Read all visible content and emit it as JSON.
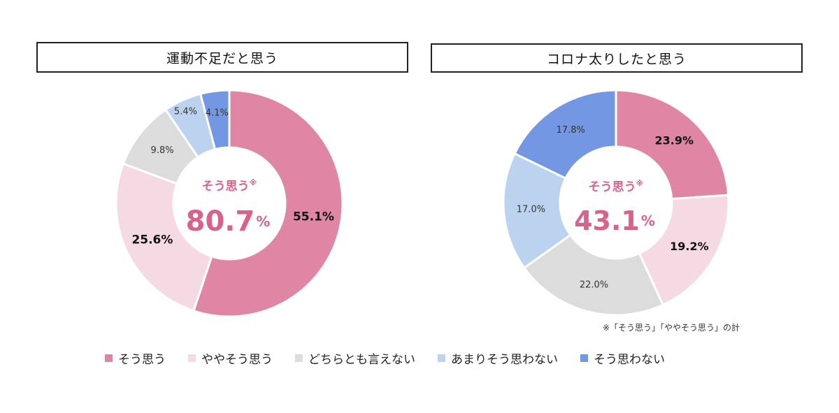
{
  "colors": {
    "so_omou": "#df86a5",
    "yaya_so_omou": "#f5d9e3",
    "dochira_tomo": "#dcdcdc",
    "amari": "#bcd3f0",
    "so_omowanai": "#7397e3",
    "center_text": "#d9628a"
  },
  "legend": [
    {
      "label": "そう思う",
      "color": "#df86a5"
    },
    {
      "label": "ややそう思う",
      "color": "#f5d9e3"
    },
    {
      "label": "どちらとも言えない",
      "color": "#dcdcdc"
    },
    {
      "label": "あまりそう思わない",
      "color": "#bcd3f0"
    },
    {
      "label": "そう思わない",
      "color": "#7397e3"
    }
  ],
  "footnote": "※「そう思う」「ややそう思う」の計",
  "chart_data": [
    {
      "type": "pie",
      "variant": "donut",
      "title": "運動不足だと思う",
      "categories": [
        "そう思う",
        "ややそう思う",
        "どちらとも言えない",
        "あまりそう思わない",
        "そう思わない"
      ],
      "values": [
        55.1,
        25.6,
        9.8,
        5.4,
        4.1
      ],
      "labels": [
        "55.1%",
        "25.6%",
        "9.8%",
        "5.4%",
        "4.1%"
      ],
      "center_label": "そう思う",
      "center_mark": "※",
      "center_value": "80.7",
      "center_unit": "%"
    },
    {
      "type": "pie",
      "variant": "donut",
      "title": "コロナ太りしたと思う",
      "categories": [
        "そう思う",
        "ややそう思う",
        "どちらとも言えない",
        "あまりそう思わない",
        "そう思わない"
      ],
      "values": [
        23.9,
        19.2,
        22.0,
        17.0,
        17.8
      ],
      "labels": [
        "23.9%",
        "19.2%",
        "22.0%",
        "17.0%",
        "17.8%"
      ],
      "center_label": "そう思う",
      "center_mark": "※",
      "center_value": "43.1",
      "center_unit": "%"
    }
  ]
}
